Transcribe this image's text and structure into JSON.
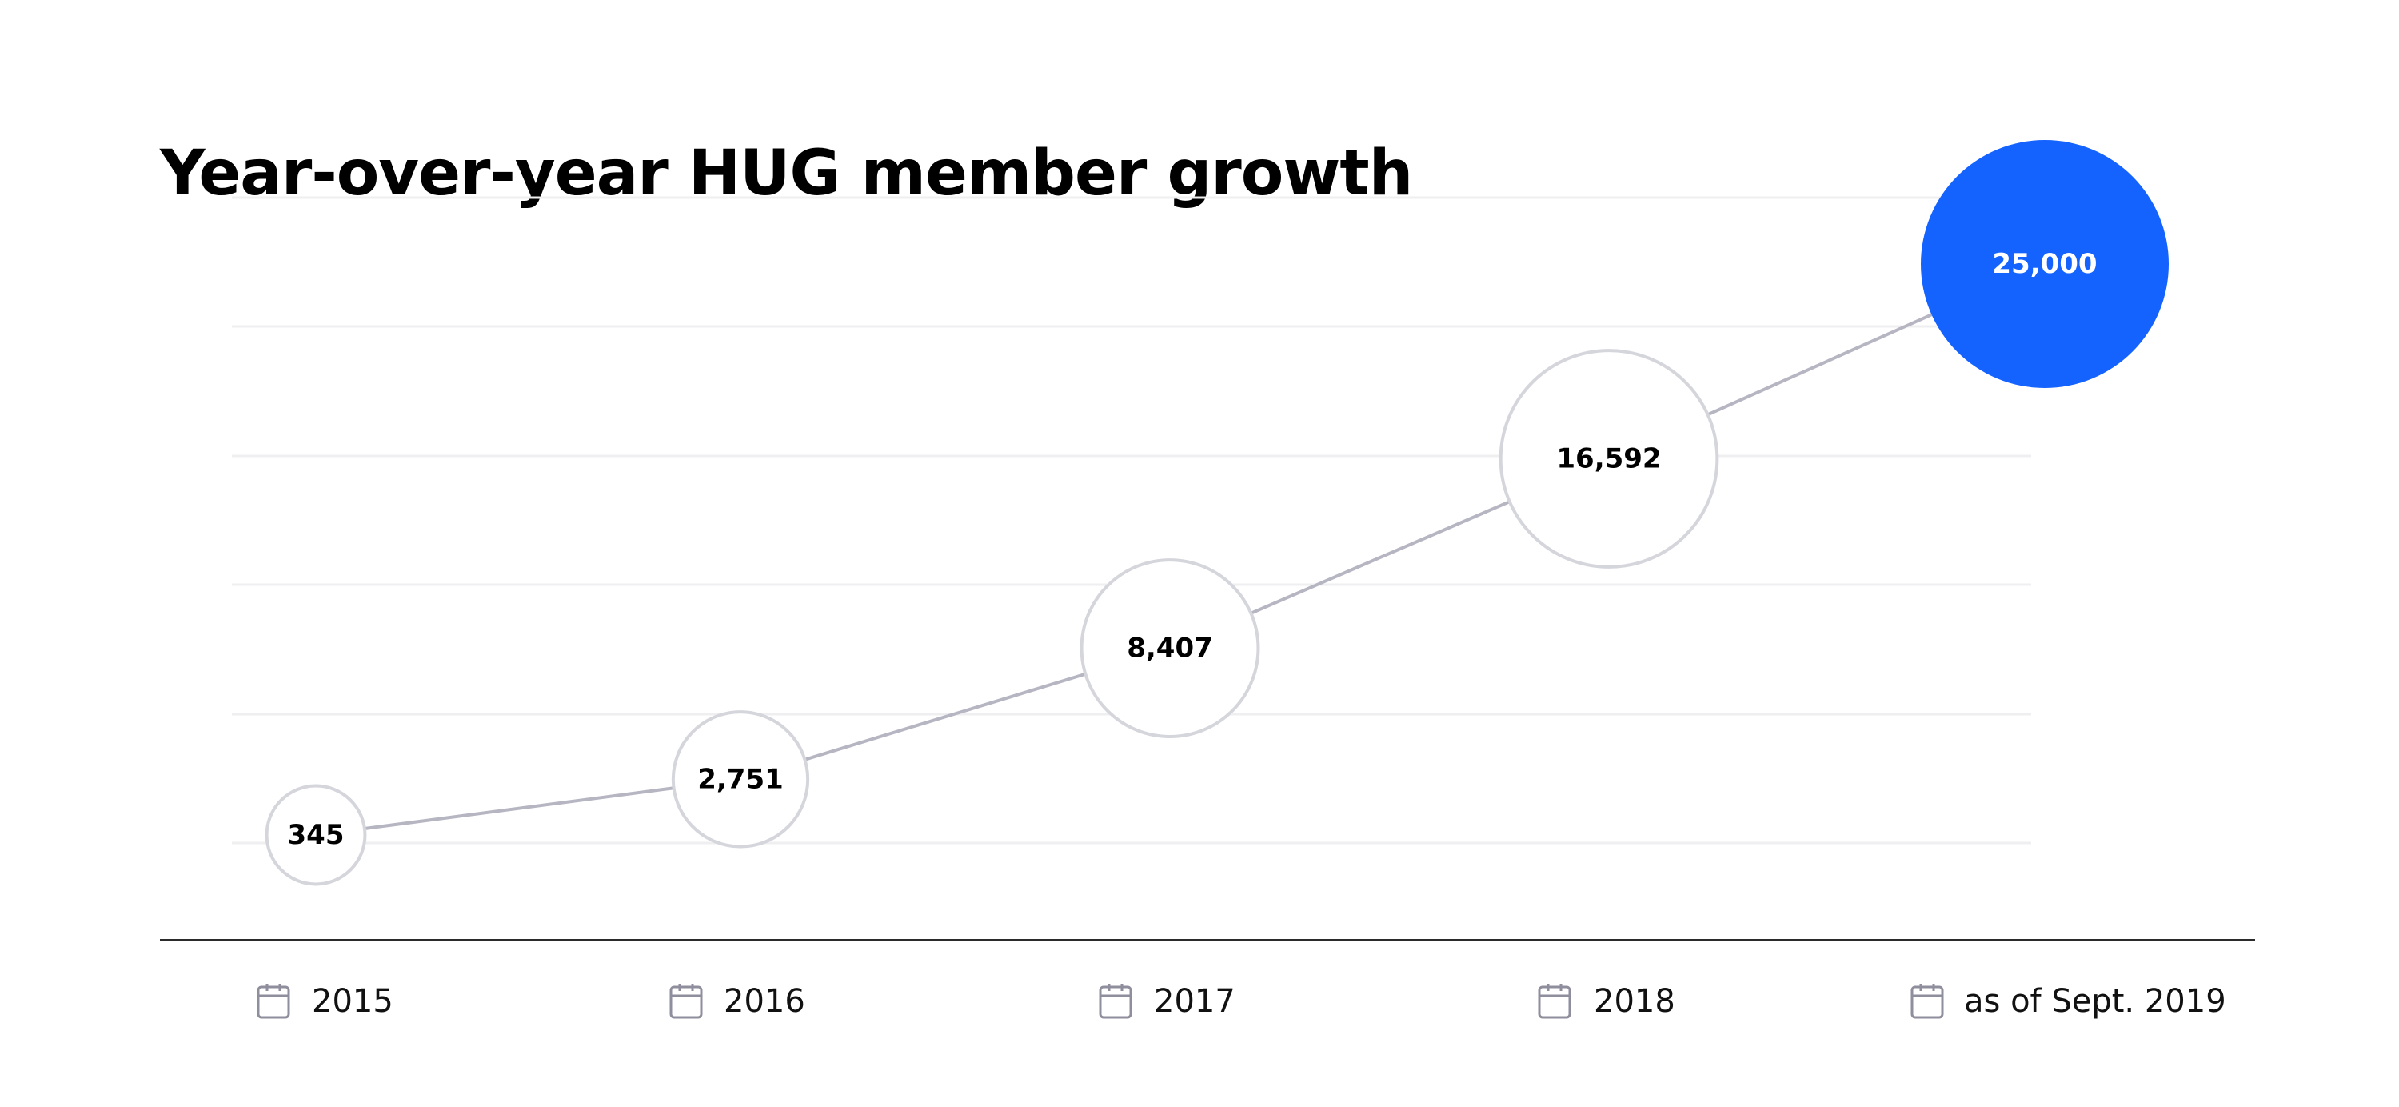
{
  "chart_data": {
    "type": "scatter",
    "title": "Year-over-year HUG member growth",
    "categories": [
      "2015",
      "2016",
      "2017",
      "2018",
      "as of Sept. 2019"
    ],
    "values": [
      345,
      2751,
      8407,
      16592,
      25000
    ],
    "value_labels": [
      "345",
      "2,751",
      "8,407",
      "16,592",
      "25,000"
    ],
    "connected": true,
    "grid": true,
    "xlabel": "",
    "ylabel": "",
    "category_icon": "calendar-icon",
    "highlight_index": 4
  },
  "colors": {
    "highlight_fill": "#1563ff",
    "bubble_stroke": "#d5d5dc",
    "connector": "#b6b5c2",
    "gridline": "#efeff2",
    "axis": "#2b2b2b",
    "icon": "#8f8e9c",
    "text": "#000000",
    "highlight_text": "#ffffff"
  }
}
